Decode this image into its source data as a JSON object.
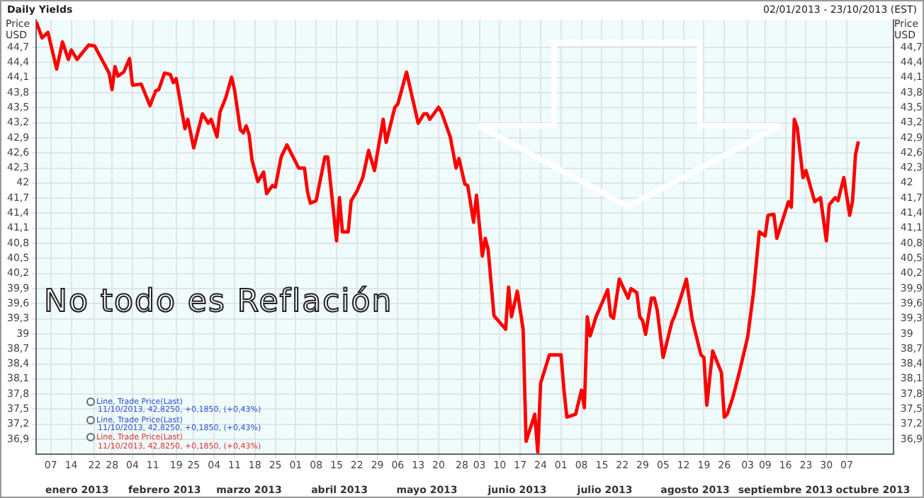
{
  "chart_data": {
    "type": "line",
    "title": "Daily Yields",
    "subtitle": "02/01/2013 - 23/10/2013 (EST)",
    "ylabel": "Price USD",
    "y2label": "Price USD",
    "annotations": [
      "No todo es Reflación",
      "Line, Trade Price(Last)",
      "11/10/2013, 42,8250, +0,1850, (+0,43%)",
      "Line, Trade Price(Last)",
      "11/10/2013, 42,8250, +0,1850, (+0,43%)",
      "Line, Trade Price(Last)",
      "11/10/2013, 42,8250, +0,1850, (+0,43%)"
    ],
    "xlim": [
      "2013-01-02",
      "2013-10-23"
    ],
    "xticks": [
      {
        "value": "2013-01-07",
        "label": "07"
      },
      {
        "value": "2013-01-14",
        "label": "14"
      },
      {
        "value": "2013-01-22",
        "label": "22"
      },
      {
        "value": "2013-01-28",
        "label": "28"
      },
      {
        "value": "2013-02-04",
        "label": "04"
      },
      {
        "value": "2013-02-11",
        "label": "11"
      },
      {
        "value": "2013-02-19",
        "label": "19"
      },
      {
        "value": "2013-02-25",
        "label": "25"
      },
      {
        "value": "2013-03-04",
        "label": "04"
      },
      {
        "value": "2013-03-11",
        "label": "11"
      },
      {
        "value": "2013-03-18",
        "label": "18"
      },
      {
        "value": "2013-03-25",
        "label": "25"
      },
      {
        "value": "2013-04-01",
        "label": "01"
      },
      {
        "value": "2013-04-08",
        "label": "08"
      },
      {
        "value": "2013-04-15",
        "label": "15"
      },
      {
        "value": "2013-04-22",
        "label": "22"
      },
      {
        "value": "2013-04-29",
        "label": "29"
      },
      {
        "value": "2013-05-06",
        "label": "06"
      },
      {
        "value": "2013-05-13",
        "label": "13"
      },
      {
        "value": "2013-05-20",
        "label": "20"
      },
      {
        "value": "2013-05-28",
        "label": "28"
      },
      {
        "value": "2013-06-03",
        "label": "03"
      },
      {
        "value": "2013-06-10",
        "label": "10"
      },
      {
        "value": "2013-06-17",
        "label": "17"
      },
      {
        "value": "2013-06-24",
        "label": "24"
      },
      {
        "value": "2013-07-01",
        "label": "01"
      },
      {
        "value": "2013-07-08",
        "label": "08"
      },
      {
        "value": "2013-07-15",
        "label": "15"
      },
      {
        "value": "2013-07-22",
        "label": "22"
      },
      {
        "value": "2013-07-29",
        "label": "29"
      },
      {
        "value": "2013-08-05",
        "label": "05"
      },
      {
        "value": "2013-08-12",
        "label": "12"
      },
      {
        "value": "2013-08-19",
        "label": "19"
      },
      {
        "value": "2013-08-26",
        "label": "26"
      },
      {
        "value": "2013-09-03",
        "label": "03"
      },
      {
        "value": "2013-09-09",
        "label": "09"
      },
      {
        "value": "2013-09-16",
        "label": "16"
      },
      {
        "value": "2013-09-23",
        "label": "23"
      },
      {
        "value": "2013-09-30",
        "label": "30"
      },
      {
        "value": "2013-10-07",
        "label": "07"
      }
    ],
    "x2lim": [
      "2013-01-02",
      "2013-10-23"
    ],
    "x2ticks": [
      {
        "value": "2013-01-16",
        "label": "enero 2013"
      },
      {
        "value": "2013-02-15",
        "label": "febrero 2013"
      },
      {
        "value": "2013-03-16",
        "label": "marzo 2013"
      },
      {
        "value": "2013-04-16",
        "label": "abril 2013"
      },
      {
        "value": "2013-05-16",
        "label": "mayo 2013"
      },
      {
        "value": "2013-06-16",
        "label": "junio 2013"
      },
      {
        "value": "2013-07-16",
        "label": "julio 2013"
      },
      {
        "value": "2013-08-16",
        "label": "agosto 2013"
      },
      {
        "value": "2013-09-16",
        "label": "septiembre 2013"
      },
      {
        "value": "2013-10-16",
        "label": "octubre 2013"
      }
    ],
    "ylim": [
      36.6,
      45.25
    ],
    "yticks": [
      {
        "value": 36.9,
        "label": "36,9"
      },
      {
        "value": 37.2,
        "label": "37,2"
      },
      {
        "value": 37.5,
        "label": "37,5"
      },
      {
        "value": 37.8,
        "label": "37,8"
      },
      {
        "value": 38.1,
        "label": "38,1"
      },
      {
        "value": 38.4,
        "label": "38,4"
      },
      {
        "value": 38.7,
        "label": "38,7"
      },
      39,
      {
        "value": 39.3,
        "label": "39,3"
      },
      {
        "value": 39.6,
        "label": "39,6"
      },
      {
        "value": 39.9,
        "label": "39,9"
      },
      {
        "value": 40.2,
        "label": "40,2"
      },
      {
        "value": 40.5,
        "label": "40,5"
      },
      {
        "value": 40.8,
        "label": "40,8"
      },
      {
        "value": 41.1,
        "label": "41,1"
      },
      {
        "value": 41.4,
        "label": "41,4"
      },
      {
        "value": 41.7,
        "label": "41,7"
      },
      42,
      {
        "value": 42.3,
        "label": "42,3"
      },
      {
        "value": 42.6,
        "label": "42,6"
      },
      {
        "value": 42.9,
        "label": "42,9"
      },
      {
        "value": 43.2,
        "label": "43,2"
      },
      {
        "value": 43.5,
        "label": "43,5"
      },
      {
        "value": 43.8,
        "label": "43,8"
      },
      {
        "value": 44.1,
        "label": "44,1"
      },
      {
        "value": 44.4,
        "label": "44,4"
      },
      {
        "value": 44.7,
        "label": "44,7"
      }
    ],
    "y2lim": [
      36.6,
      45.25
    ],
    "y2ticks": [
      {
        "value": 36.9,
        "label": "36,9"
      },
      {
        "value": 37.2,
        "label": "37,2"
      },
      {
        "value": 37.5,
        "label": "37,5"
      },
      {
        "value": 37.8,
        "label": "37,8"
      },
      {
        "value": 38.1,
        "label": "38,1"
      },
      {
        "value": 38.4,
        "label": "38,4"
      },
      {
        "value": 38.7,
        "label": "38,7"
      },
      39,
      {
        "value": 39.3,
        "label": "39,3"
      },
      {
        "value": 39.6,
        "label": "39,6"
      },
      {
        "value": 39.9,
        "label": "39,9"
      },
      {
        "value": 40.2,
        "label": "40,2"
      },
      {
        "value": 40.5,
        "label": "40,5"
      },
      {
        "value": 40.8,
        "label": "40,8"
      },
      {
        "value": 41.1,
        "label": "41,1"
      },
      {
        "value": 41.4,
        "label": "41,4"
      },
      {
        "value": 41.7,
        "label": "41,7"
      },
      42,
      {
        "value": 42.3,
        "label": "42,3"
      },
      {
        "value": 42.6,
        "label": "42,6"
      },
      {
        "value": 42.9,
        "label": "42,9"
      },
      {
        "value": 43.2,
        "label": "43,2"
      },
      {
        "value": 43.5,
        "label": "43,5"
      },
      {
        "value": 43.8,
        "label": "43,8"
      },
      {
        "value": 44.1,
        "label": "44,1"
      },
      {
        "value": 44.4,
        "label": "44,4"
      },
      {
        "value": 44.7,
        "label": "44,7"
      }
    ],
    "grid": true,
    "marker": "none",
    "line_style": "solid",
    "series": [
      {
        "color": "#ff0000",
        "x": [
          "2013-01-02",
          "2013-01-04",
          "2013-01-06",
          "2013-01-09",
          "2013-01-11",
          "2013-01-13",
          "2013-01-14",
          "2013-01-16",
          "2013-01-20",
          "2013-01-22",
          "2013-01-27",
          "2013-01-28",
          "2013-01-29",
          "2013-01-30",
          "2013-02-01",
          "2013-02-03",
          "2013-02-04",
          "2013-02-07",
          "2013-02-10",
          "2013-02-12",
          "2013-02-13",
          "2013-02-15",
          "2013-02-17",
          "2013-02-18",
          "2013-02-19",
          "2013-02-22",
          "2013-02-23",
          "2013-02-25",
          "2013-02-28",
          "2013-03-02",
          "2013-03-03",
          "2013-03-05",
          "2013-03-06",
          "2013-03-08",
          "2013-03-10",
          "2013-03-11",
          "2013-03-13",
          "2013-03-14",
          "2013-03-15",
          "2013-03-16",
          "2013-03-17",
          "2013-03-19",
          "2013-03-21",
          "2013-03-22",
          "2013-03-24",
          "2013-03-25",
          "2013-03-27",
          "2013-03-29",
          "2013-04-02",
          "2013-04-04",
          "2013-04-05",
          "2013-04-06",
          "2013-04-08",
          "2013-04-11",
          "2013-04-12",
          "2013-04-15",
          "2013-04-16",
          "2013-04-17",
          "2013-04-19",
          "2013-04-20",
          "2013-04-22",
          "2013-04-24",
          "2013-04-26",
          "2013-04-28",
          "2013-05-01",
          "2013-05-02",
          "2013-05-05",
          "2013-05-06",
          "2013-05-09",
          "2013-05-13",
          "2013-05-15",
          "2013-05-16",
          "2013-05-17",
          "2013-05-20",
          "2013-05-21",
          "2013-05-24",
          "2013-05-26",
          "2013-05-27",
          "2013-05-29",
          "2013-05-30",
          "2013-06-01",
          "2013-06-02",
          "2013-06-04",
          "2013-06-05",
          "2013-06-06",
          "2013-06-08",
          "2013-06-12",
          "2013-06-13",
          "2013-06-14",
          "2013-06-16",
          "2013-06-18",
          "2013-06-19",
          "2013-06-22",
          "2013-06-23",
          "2013-06-24",
          "2013-06-27",
          "2013-07-01",
          "2013-07-02",
          "2013-07-03",
          "2013-07-06",
          "2013-07-08",
          "2013-07-09",
          "2013-07-10",
          "2013-07-11",
          "2013-07-13",
          "2013-07-14",
          "2013-07-17",
          "2013-07-18",
          "2013-07-19",
          "2013-07-21",
          "2013-07-24",
          "2013-07-25",
          "2013-07-27",
          "2013-07-28",
          "2013-07-29",
          "2013-07-30",
          "2013-08-01",
          "2013-08-02",
          "2013-08-03",
          "2013-08-05",
          "2013-08-08",
          "2013-08-09",
          "2013-08-11",
          "2013-08-13",
          "2013-08-15",
          "2013-08-18",
          "2013-08-19",
          "2013-08-20",
          "2013-08-22",
          "2013-08-25",
          "2013-08-26",
          "2013-08-27",
          "2013-08-29",
          "2013-08-31",
          "2013-09-03",
          "2013-09-05",
          "2013-09-07",
          "2013-09-09",
          "2013-09-10",
          "2013-09-12",
          "2013-09-13",
          "2013-09-17",
          "2013-09-18",
          "2013-09-19",
          "2013-09-20",
          "2013-09-22",
          "2013-09-23",
          "2013-09-26",
          "2013-09-28",
          "2013-09-30",
          "2013-10-01",
          "2013-10-03",
          "2013-10-04",
          "2013-10-06",
          "2013-10-08",
          "2013-10-09",
          "2013-10-10",
          "2013-10-11"
        ],
        "values": [
          45.21,
          44.89,
          45.0,
          44.27,
          44.81,
          44.46,
          44.65,
          44.46,
          44.75,
          44.73,
          44.19,
          43.86,
          44.32,
          44.13,
          44.21,
          44.48,
          43.95,
          43.97,
          43.54,
          43.84,
          43.86,
          44.19,
          44.16,
          44.0,
          44.08,
          43.08,
          43.27,
          42.7,
          43.38,
          43.19,
          43.27,
          42.92,
          43.41,
          43.7,
          44.11,
          43.86,
          43.06,
          43.0,
          43.14,
          42.97,
          42.46,
          42.03,
          42.22,
          41.79,
          41.95,
          41.92,
          42.52,
          42.76,
          42.3,
          42.3,
          41.84,
          41.6,
          41.65,
          42.52,
          42.52,
          40.85,
          41.71,
          41.03,
          41.03,
          41.65,
          41.84,
          42.11,
          42.65,
          42.25,
          43.27,
          42.81,
          43.51,
          43.57,
          44.21,
          43.19,
          43.38,
          43.38,
          43.27,
          43.51,
          43.41,
          42.92,
          42.3,
          42.49,
          41.98,
          41.95,
          41.22,
          41.76,
          40.55,
          40.9,
          40.68,
          39.36,
          39.09,
          39.93,
          39.34,
          39.85,
          39.09,
          36.86,
          37.4,
          36.65,
          38.02,
          38.58,
          38.58,
          37.88,
          37.34,
          37.4,
          37.88,
          37.53,
          39.34,
          38.96,
          39.34,
          39.47,
          39.88,
          39.36,
          39.31,
          40.09,
          39.71,
          39.9,
          39.82,
          39.34,
          39.26,
          38.99,
          39.71,
          39.71,
          39.47,
          38.53,
          39.23,
          39.36,
          39.71,
          40.09,
          39.28,
          38.58,
          38.53,
          37.58,
          38.66,
          38.23,
          37.34,
          37.4,
          37.75,
          38.2,
          38.93,
          39.82,
          41.03,
          40.95,
          41.36,
          41.38,
          40.9,
          41.63,
          41.52,
          43.27,
          43.11,
          42.11,
          42.25,
          41.63,
          41.71,
          40.85,
          41.57,
          41.71,
          41.65,
          42.11,
          41.36,
          41.65,
          42.57,
          42.83
        ]
      }
    ]
  }
}
